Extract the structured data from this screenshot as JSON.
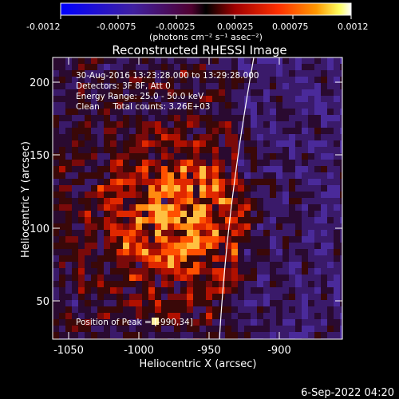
{
  "colorbar": {
    "ticks": [
      "-0.0012",
      "-0.00075",
      "-0.00025",
      "0.00025",
      "0.00075",
      "0.0012"
    ],
    "unit_label": "(photons cm⁻² s⁻¹ asec⁻²)",
    "min": -0.0012,
    "max": 0.0012
  },
  "plot": {
    "title": "Reconstructed RHESSI Image",
    "xlabel": "Heliocentric X (arcsec)",
    "ylabel": "Heliocentric Y (arcsec)",
    "xticks": [
      "-1050",
      "-1000",
      "-950",
      "-900"
    ],
    "yticks": [
      "200",
      "150",
      "100",
      "50"
    ],
    "xrange": [
      -1072,
      -863
    ],
    "yrange": [
      27,
      218
    ]
  },
  "annotations": {
    "time_range": "30-Aug-2016 13:23:28.000 to 13:29:28.000",
    "detectors": "Detectors: 3F 8F, Att 0",
    "energy": "Energy Range: 25.0 - 50.0 keV",
    "clean": "Clean     Total counts: 3.26E+03",
    "peak": "Position of Peak = [-990,34]"
  },
  "footer": {
    "date": "6-Sep-2022 04:20"
  }
}
